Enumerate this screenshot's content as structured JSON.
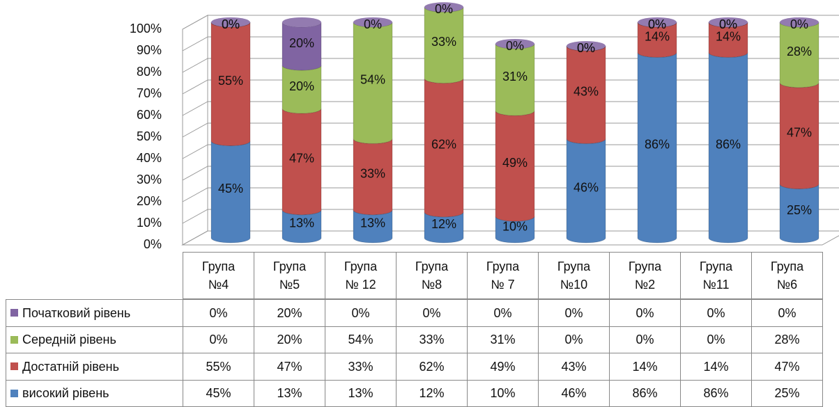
{
  "chart_data": {
    "type": "bar3d-stacked",
    "categories": [
      "Група №4",
      "Група №5",
      "Група № 12",
      "Група №8",
      "Група № 7",
      "Група №10",
      "Група №2",
      "Група №11",
      "Група №6"
    ],
    "series": [
      {
        "name": "високий рівень",
        "color": "#4f81bd",
        "values": [
          45,
          13,
          13,
          12,
          10,
          46,
          86,
          86,
          25
        ],
        "value_labels": [
          "45%",
          "13%",
          "13%",
          "12%",
          "10%",
          "46%",
          "86%",
          "86%",
          "25%"
        ]
      },
      {
        "name": "Достатній рівень",
        "color": "#c0504d",
        "values": [
          55,
          47,
          33,
          62,
          49,
          43,
          14,
          14,
          47
        ],
        "value_labels": [
          "55%",
          "47%",
          "33%",
          "62%",
          "49%",
          "43%",
          "14%",
          "14%",
          "47%"
        ]
      },
      {
        "name": "Середній рівень",
        "color": "#9bbb59",
        "values": [
          0,
          20,
          54,
          33,
          31,
          0,
          0,
          0,
          28
        ],
        "value_labels": [
          "0%",
          "20%",
          "54%",
          "33%",
          "31%",
          "0%",
          "0%",
          "0%",
          "28%"
        ]
      },
      {
        "name": "Початковий рівень",
        "color": "#8064a2",
        "values": [
          0,
          20,
          0,
          0,
          0,
          0,
          0,
          0,
          0
        ],
        "value_labels": [
          "0%",
          "20%",
          "0%",
          "0%",
          "0%",
          "0%",
          "0%",
          "0%",
          "0%"
        ]
      }
    ],
    "ylim": [
      0,
      100
    ],
    "yticks": [
      {
        "value": 0,
        "label": "0%"
      },
      {
        "value": 10,
        "label": "10%"
      },
      {
        "value": 20,
        "label": "20%"
      },
      {
        "value": 30,
        "label": "30%"
      },
      {
        "value": 40,
        "label": "40%"
      },
      {
        "value": 50,
        "label": "50%"
      },
      {
        "value": 60,
        "label": "60%"
      },
      {
        "value": 70,
        "label": "70%"
      },
      {
        "value": 80,
        "label": "80%"
      },
      {
        "value": 90,
        "label": "90%"
      },
      {
        "value": 100,
        "label": "100%"
      }
    ],
    "grid": true
  }
}
